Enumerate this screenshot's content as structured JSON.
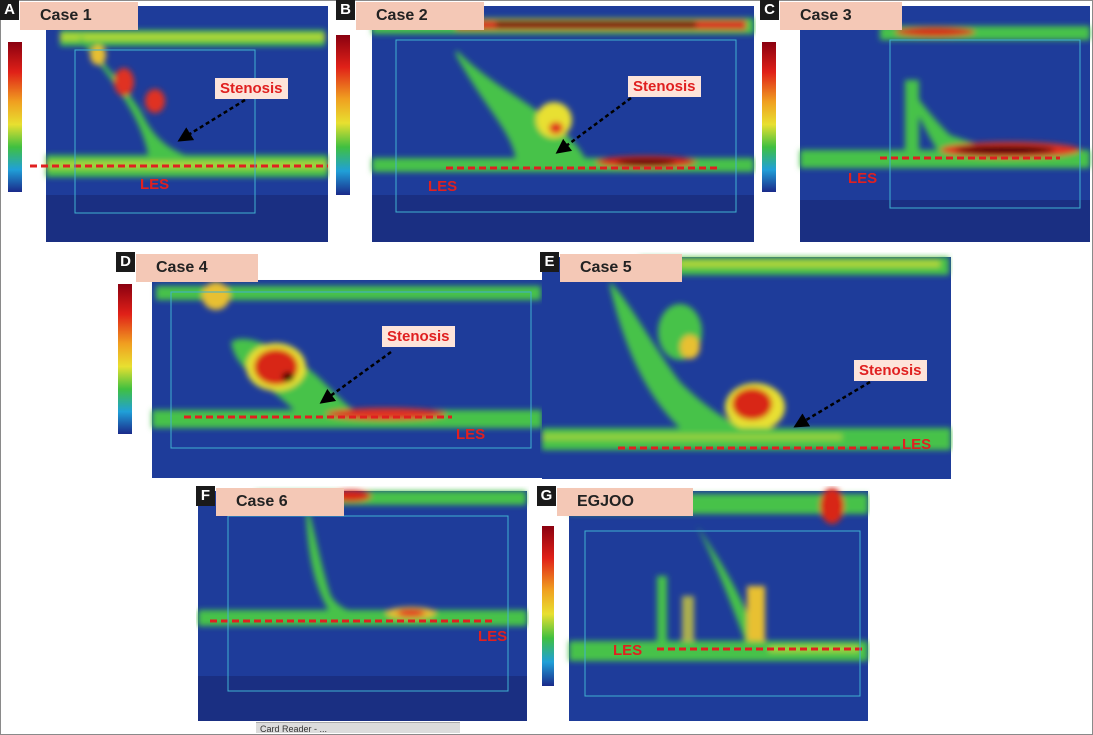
{
  "panels": [
    {
      "letter": "A",
      "title": "Case 1",
      "stenosis": "Stenosis",
      "les": "LES"
    },
    {
      "letter": "B",
      "title": "Case 2",
      "stenosis": "Stenosis",
      "les": "LES"
    },
    {
      "letter": "C",
      "title": "Case 3",
      "les": "LES"
    },
    {
      "letter": "D",
      "title": "Case 4",
      "stenosis": "Stenosis",
      "les": "LES"
    },
    {
      "letter": "E",
      "title": "Case 5",
      "stenosis": "Stenosis",
      "les": "LES"
    },
    {
      "letter": "F",
      "title": "Case 6",
      "les": "LES",
      "taskbar": "Card Reader - ..."
    },
    {
      "letter": "G",
      "title": "EGJOO",
      "les": "LES"
    }
  ],
  "colors": {
    "background_blue": "#1e3c9a",
    "band_green": "#46c24a",
    "hot_red": "#d8281c",
    "label_red": "#e02020",
    "title_bg": "#f4c8b6"
  }
}
